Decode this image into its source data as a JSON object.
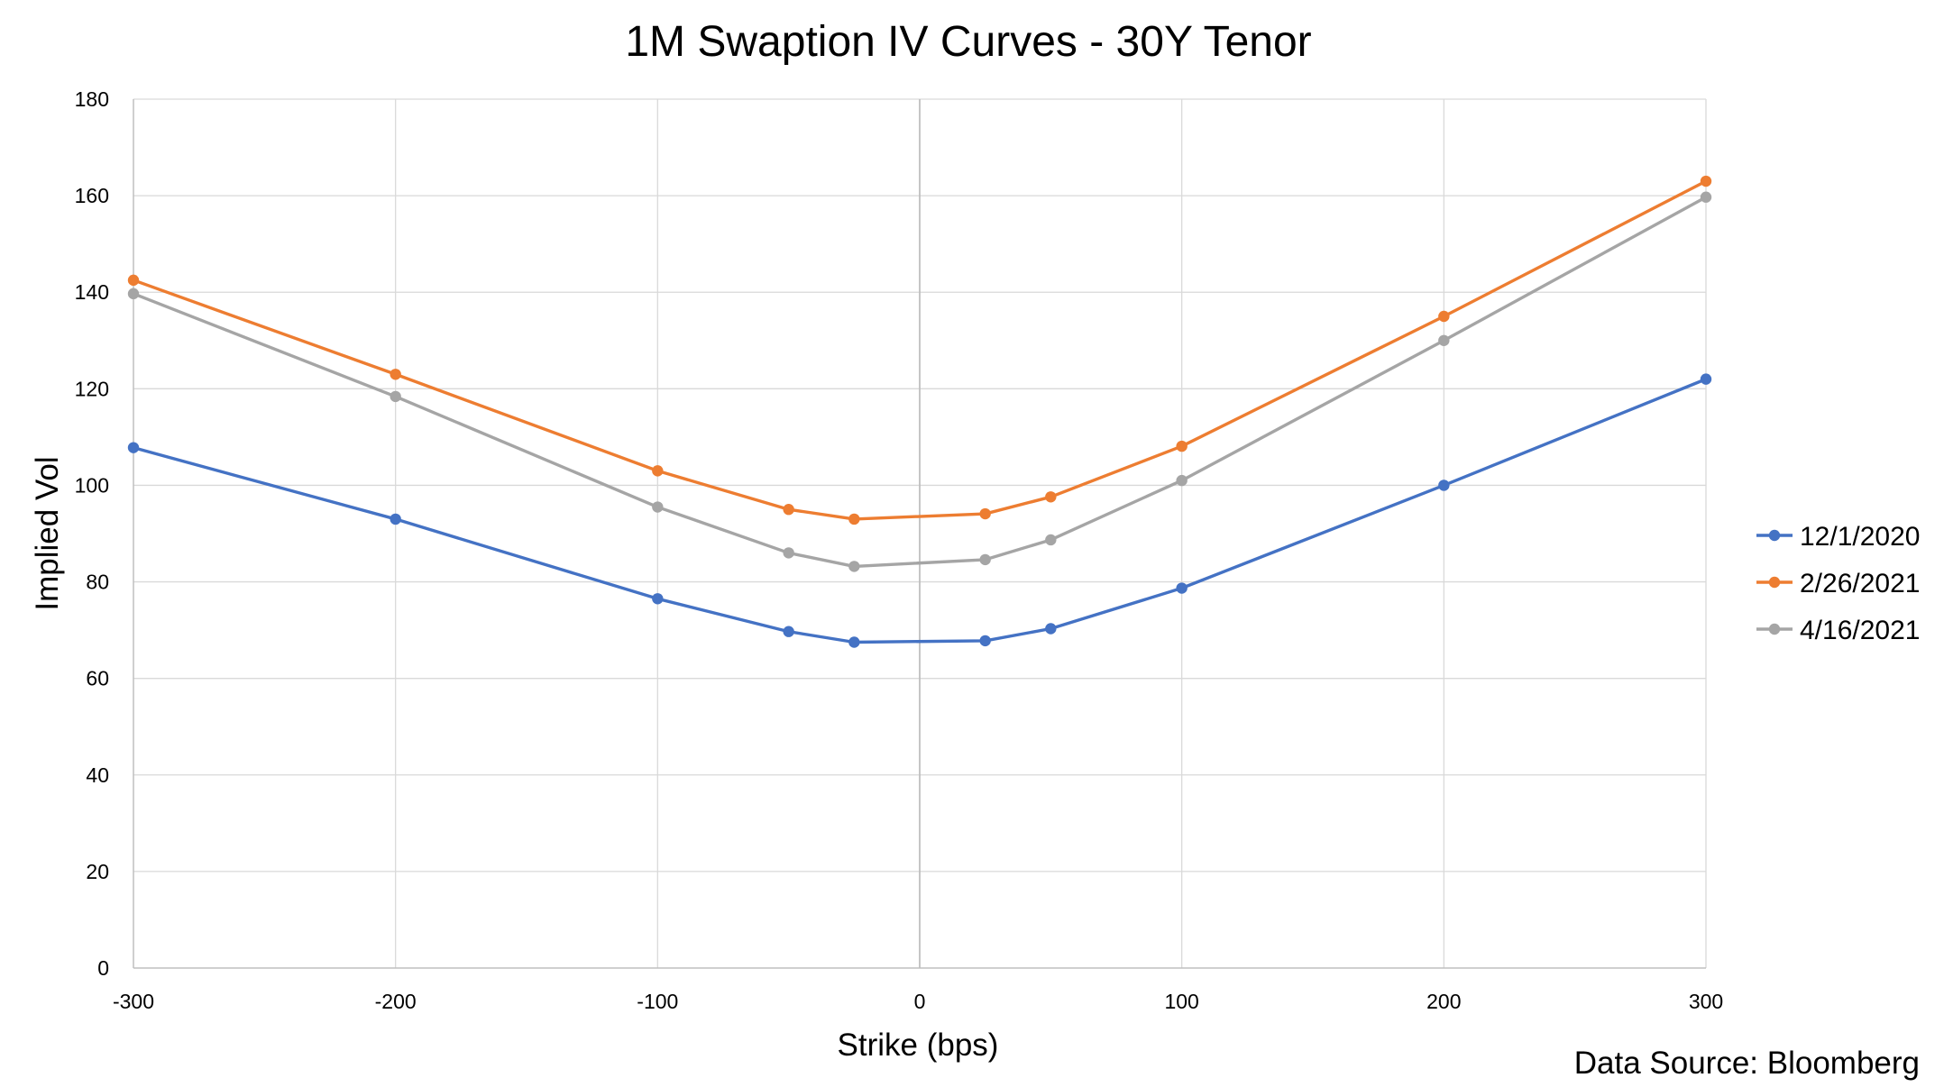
{
  "chart_data": {
    "type": "line",
    "title": "1M Swaption IV Curves - 30Y Tenor",
    "xlabel": "Strike (bps)",
    "ylabel": "Implied Vol",
    "x": [
      -300,
      -200,
      -100,
      -50,
      -25,
      25,
      50,
      100,
      200,
      300
    ],
    "xlim": [
      -300,
      300
    ],
    "ylim": [
      0,
      180
    ],
    "x_ticks": [
      -300,
      -200,
      -100,
      0,
      100,
      200,
      300
    ],
    "y_ticks": [
      0,
      20,
      40,
      60,
      80,
      100,
      120,
      140,
      160,
      180
    ],
    "x_tick_labels": [
      "-300",
      "-200",
      "-100",
      "0",
      "100",
      "200",
      "300"
    ],
    "y_tick_labels": [
      "0",
      "20",
      "40",
      "60",
      "80",
      "100",
      "120",
      "140",
      "160",
      "180"
    ],
    "grid": true,
    "legend_position": "right",
    "series": [
      {
        "name": "12/1/2020",
        "color": "#4472C4",
        "values": [
          107.8,
          93,
          76.5,
          69.7,
          67.5,
          67.8,
          70.3,
          78.7,
          100,
          122
        ]
      },
      {
        "name": "2/26/2021",
        "color": "#ED7D31",
        "values": [
          142.5,
          123,
          103,
          95,
          93,
          94.1,
          97.6,
          108.1,
          135,
          163
        ]
      },
      {
        "name": "4/16/2021",
        "color": "#A5A5A5",
        "values": [
          139.7,
          118.4,
          95.5,
          86,
          83.2,
          84.6,
          88.7,
          101,
          130,
          159.7
        ]
      }
    ]
  },
  "source_note": "Data Source: Bloomberg"
}
